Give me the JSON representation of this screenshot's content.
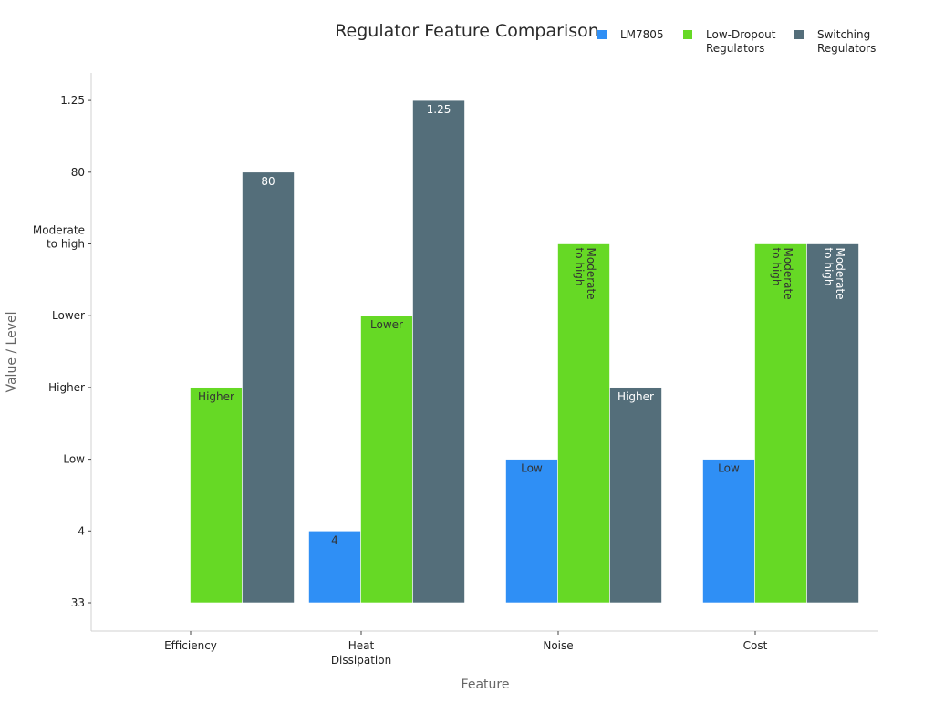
{
  "chart_data": {
    "type": "bar",
    "title": "Regulator Feature Comparison",
    "xlabel": "Feature",
    "ylabel": "Value / Level",
    "categories": [
      [
        "Efficiency"
      ],
      [
        "Heat",
        "Dissipation"
      ],
      [
        "Noise"
      ],
      [
        "Cost"
      ]
    ],
    "y_ticks": [
      [
        "33"
      ],
      [
        "4"
      ],
      [
        "Low"
      ],
      [
        "Higher"
      ],
      [
        "Lower"
      ],
      [
        "Moderate",
        "to high"
      ],
      [
        "80"
      ],
      [
        "1.25"
      ]
    ],
    "series": [
      {
        "name": "LM7805",
        "color": "#2f8ff5",
        "label_color": "#333333",
        "values": [
          null,
          1,
          2,
          2
        ],
        "labels": [
          null,
          [
            "4"
          ],
          [
            "Low"
          ],
          [
            "Low"
          ]
        ]
      },
      {
        "name": "Low-Dropout Regulators",
        "legend_lines": [
          "Low-Dropout",
          "Regulators"
        ],
        "color": "#66d925",
        "label_color": "#333333",
        "values": [
          3,
          4,
          5,
          5
        ],
        "labels": [
          [
            "Higher"
          ],
          [
            "Lower"
          ],
          [
            "Moderate",
            "to high"
          ],
          [
            "Moderate",
            "to high"
          ]
        ]
      },
      {
        "name": "Switching Regulators",
        "legend_lines": [
          "Switching",
          "Regulators"
        ],
        "color": "#546e7a",
        "label_color": "#ffffff",
        "values": [
          6,
          7,
          3,
          5
        ],
        "labels": [
          [
            "80"
          ],
          [
            "1.25"
          ],
          [
            "Higher"
          ],
          [
            "Moderate",
            "to high"
          ]
        ]
      }
    ],
    "ylim": [
      0,
      7
    ],
    "grid": false,
    "legend_position": "top-right"
  }
}
